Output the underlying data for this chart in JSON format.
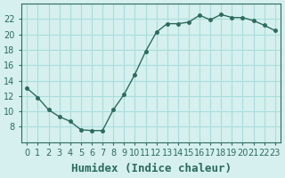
{
  "x": [
    0,
    1,
    2,
    3,
    4,
    5,
    6,
    7,
    8,
    9,
    10,
    11,
    12,
    13,
    14,
    15,
    16,
    17,
    18,
    19,
    20,
    21,
    22,
    23
  ],
  "y": [
    13.0,
    11.8,
    10.2,
    9.3,
    8.7,
    7.6,
    7.5,
    7.5,
    10.2,
    12.2,
    14.8,
    17.8,
    20.3,
    21.4,
    21.4,
    21.6,
    22.5,
    21.9,
    22.6,
    22.2,
    22.2,
    21.8,
    21.2,
    20.5
  ],
  "xlabel": "Humidex (Indice chaleur)",
  "ylim": [
    6,
    24
  ],
  "yticks": [
    8,
    10,
    12,
    14,
    16,
    18,
    20,
    22
  ],
  "xticks": [
    0,
    1,
    2,
    3,
    4,
    5,
    6,
    7,
    8,
    9,
    10,
    11,
    12,
    13,
    14,
    15,
    16,
    17,
    18,
    19,
    20,
    21,
    22,
    23
  ],
  "line_color": "#2d6b5e",
  "marker_color": "#2d6b5e",
  "bg_color": "#d5f0ee",
  "grid_color": "#aadddd",
  "xlabel_fontsize": 9,
  "tick_fontsize": 7
}
